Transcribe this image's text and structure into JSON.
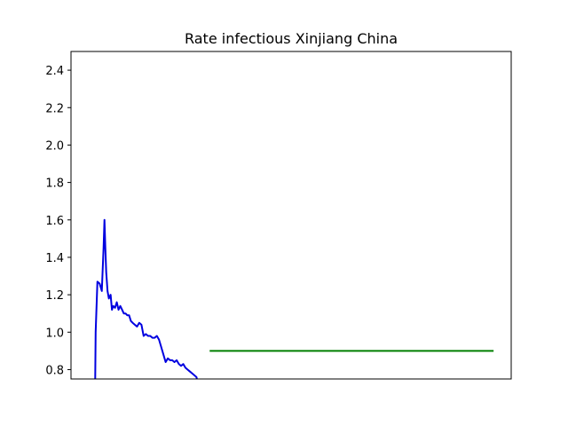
{
  "chart_data": {
    "type": "line",
    "title": "Rate infectious Xinjiang China",
    "xlabel": "",
    "ylabel": "",
    "xlim": [
      0,
      100
    ],
    "ylim": [
      0.75,
      2.5
    ],
    "yticks": [
      "0.8",
      "1.0",
      "1.2",
      "1.4",
      "1.6",
      "1.8",
      "2.0",
      "2.2",
      "2.4"
    ],
    "ytick_values": [
      0.8,
      1.0,
      1.2,
      1.4,
      1.6,
      1.8,
      2.0,
      2.2,
      2.4
    ],
    "grid": false,
    "series": [
      {
        "color": "#0000e0",
        "x": [
          5.5,
          5.6,
          6.0,
          6.5,
          7.0,
          7.4,
          7.6,
          7.8,
          8.0,
          8.3,
          8.6,
          9.0,
          9.3,
          9.6,
          10.0,
          10.4,
          10.8,
          11.2,
          11.6,
          12.0,
          12.4,
          12.8,
          13.2,
          13.6,
          14.0,
          14.5,
          15.0,
          15.5,
          16.0,
          16.5,
          17.0,
          17.5,
          18.0,
          18.5,
          19.0,
          19.5,
          20.0,
          20.5,
          21.0,
          21.5,
          22.0,
          22.5,
          23.0,
          23.5,
          24.0,
          24.5,
          25.0,
          25.5,
          26.0,
          26.5,
          27.0,
          27.5,
          28.0,
          28.5,
          28.6
        ],
        "values": [
          0.75,
          1.0,
          1.27,
          1.26,
          1.22,
          1.45,
          1.6,
          1.45,
          1.32,
          1.22,
          1.18,
          1.2,
          1.12,
          1.14,
          1.13,
          1.16,
          1.12,
          1.14,
          1.12,
          1.1,
          1.1,
          1.09,
          1.09,
          1.06,
          1.05,
          1.04,
          1.03,
          1.05,
          1.04,
          0.98,
          0.99,
          0.98,
          0.98,
          0.97,
          0.97,
          0.98,
          0.96,
          0.92,
          0.88,
          0.84,
          0.86,
          0.85,
          0.85,
          0.84,
          0.85,
          0.83,
          0.82,
          0.83,
          0.81,
          0.8,
          0.79,
          0.78,
          0.77,
          0.76,
          0.75
        ]
      },
      {
        "color": "#007f00",
        "x": [
          31.5,
          96.0
        ],
        "values": [
          0.9,
          0.9
        ]
      }
    ]
  }
}
